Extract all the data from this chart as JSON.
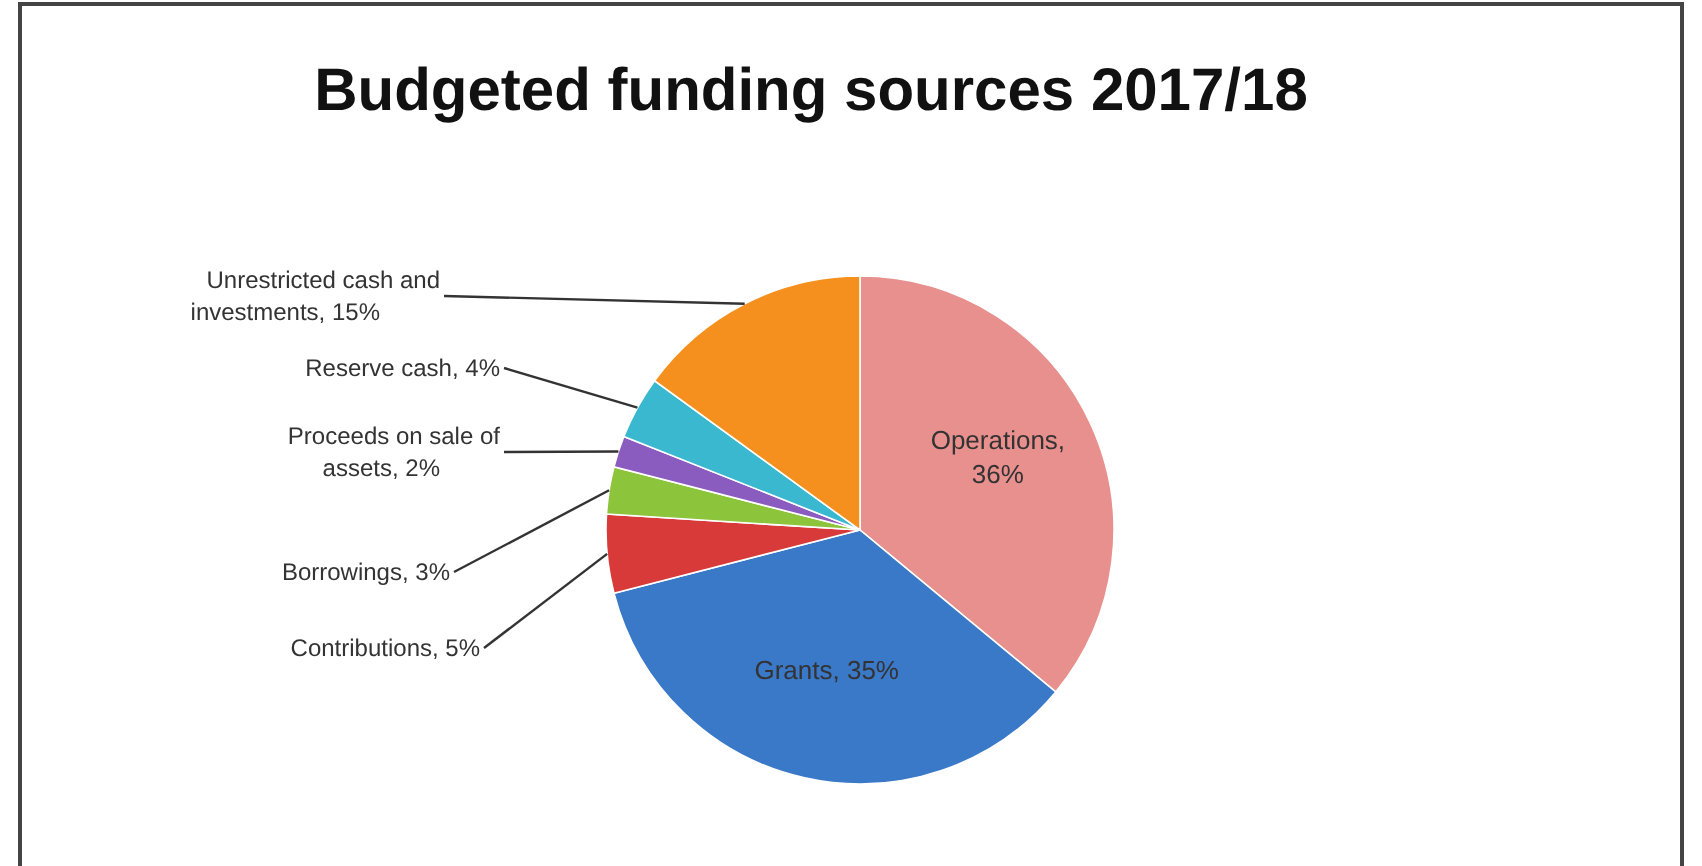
{
  "chart_data": {
    "type": "pie",
    "title": "Budgeted funding sources 2017/18",
    "categories": [
      "Operations, 36%",
      "Grants, 35%",
      "Contributions, 5%",
      "Borrowings, 3%",
      "Proceeds on sale of assets, 2%",
      "Reserve cash, 4%",
      "Unrestricted cash and investments, 15%"
    ],
    "values": [
      36,
      35,
      5,
      3,
      2,
      4,
      15
    ],
    "colors": [
      "#e8908e",
      "#3a78c8",
      "#d83a3a",
      "#8cc43c",
      "#8a5cc0",
      "#3ab8d0",
      "#f5901e"
    ]
  }
}
